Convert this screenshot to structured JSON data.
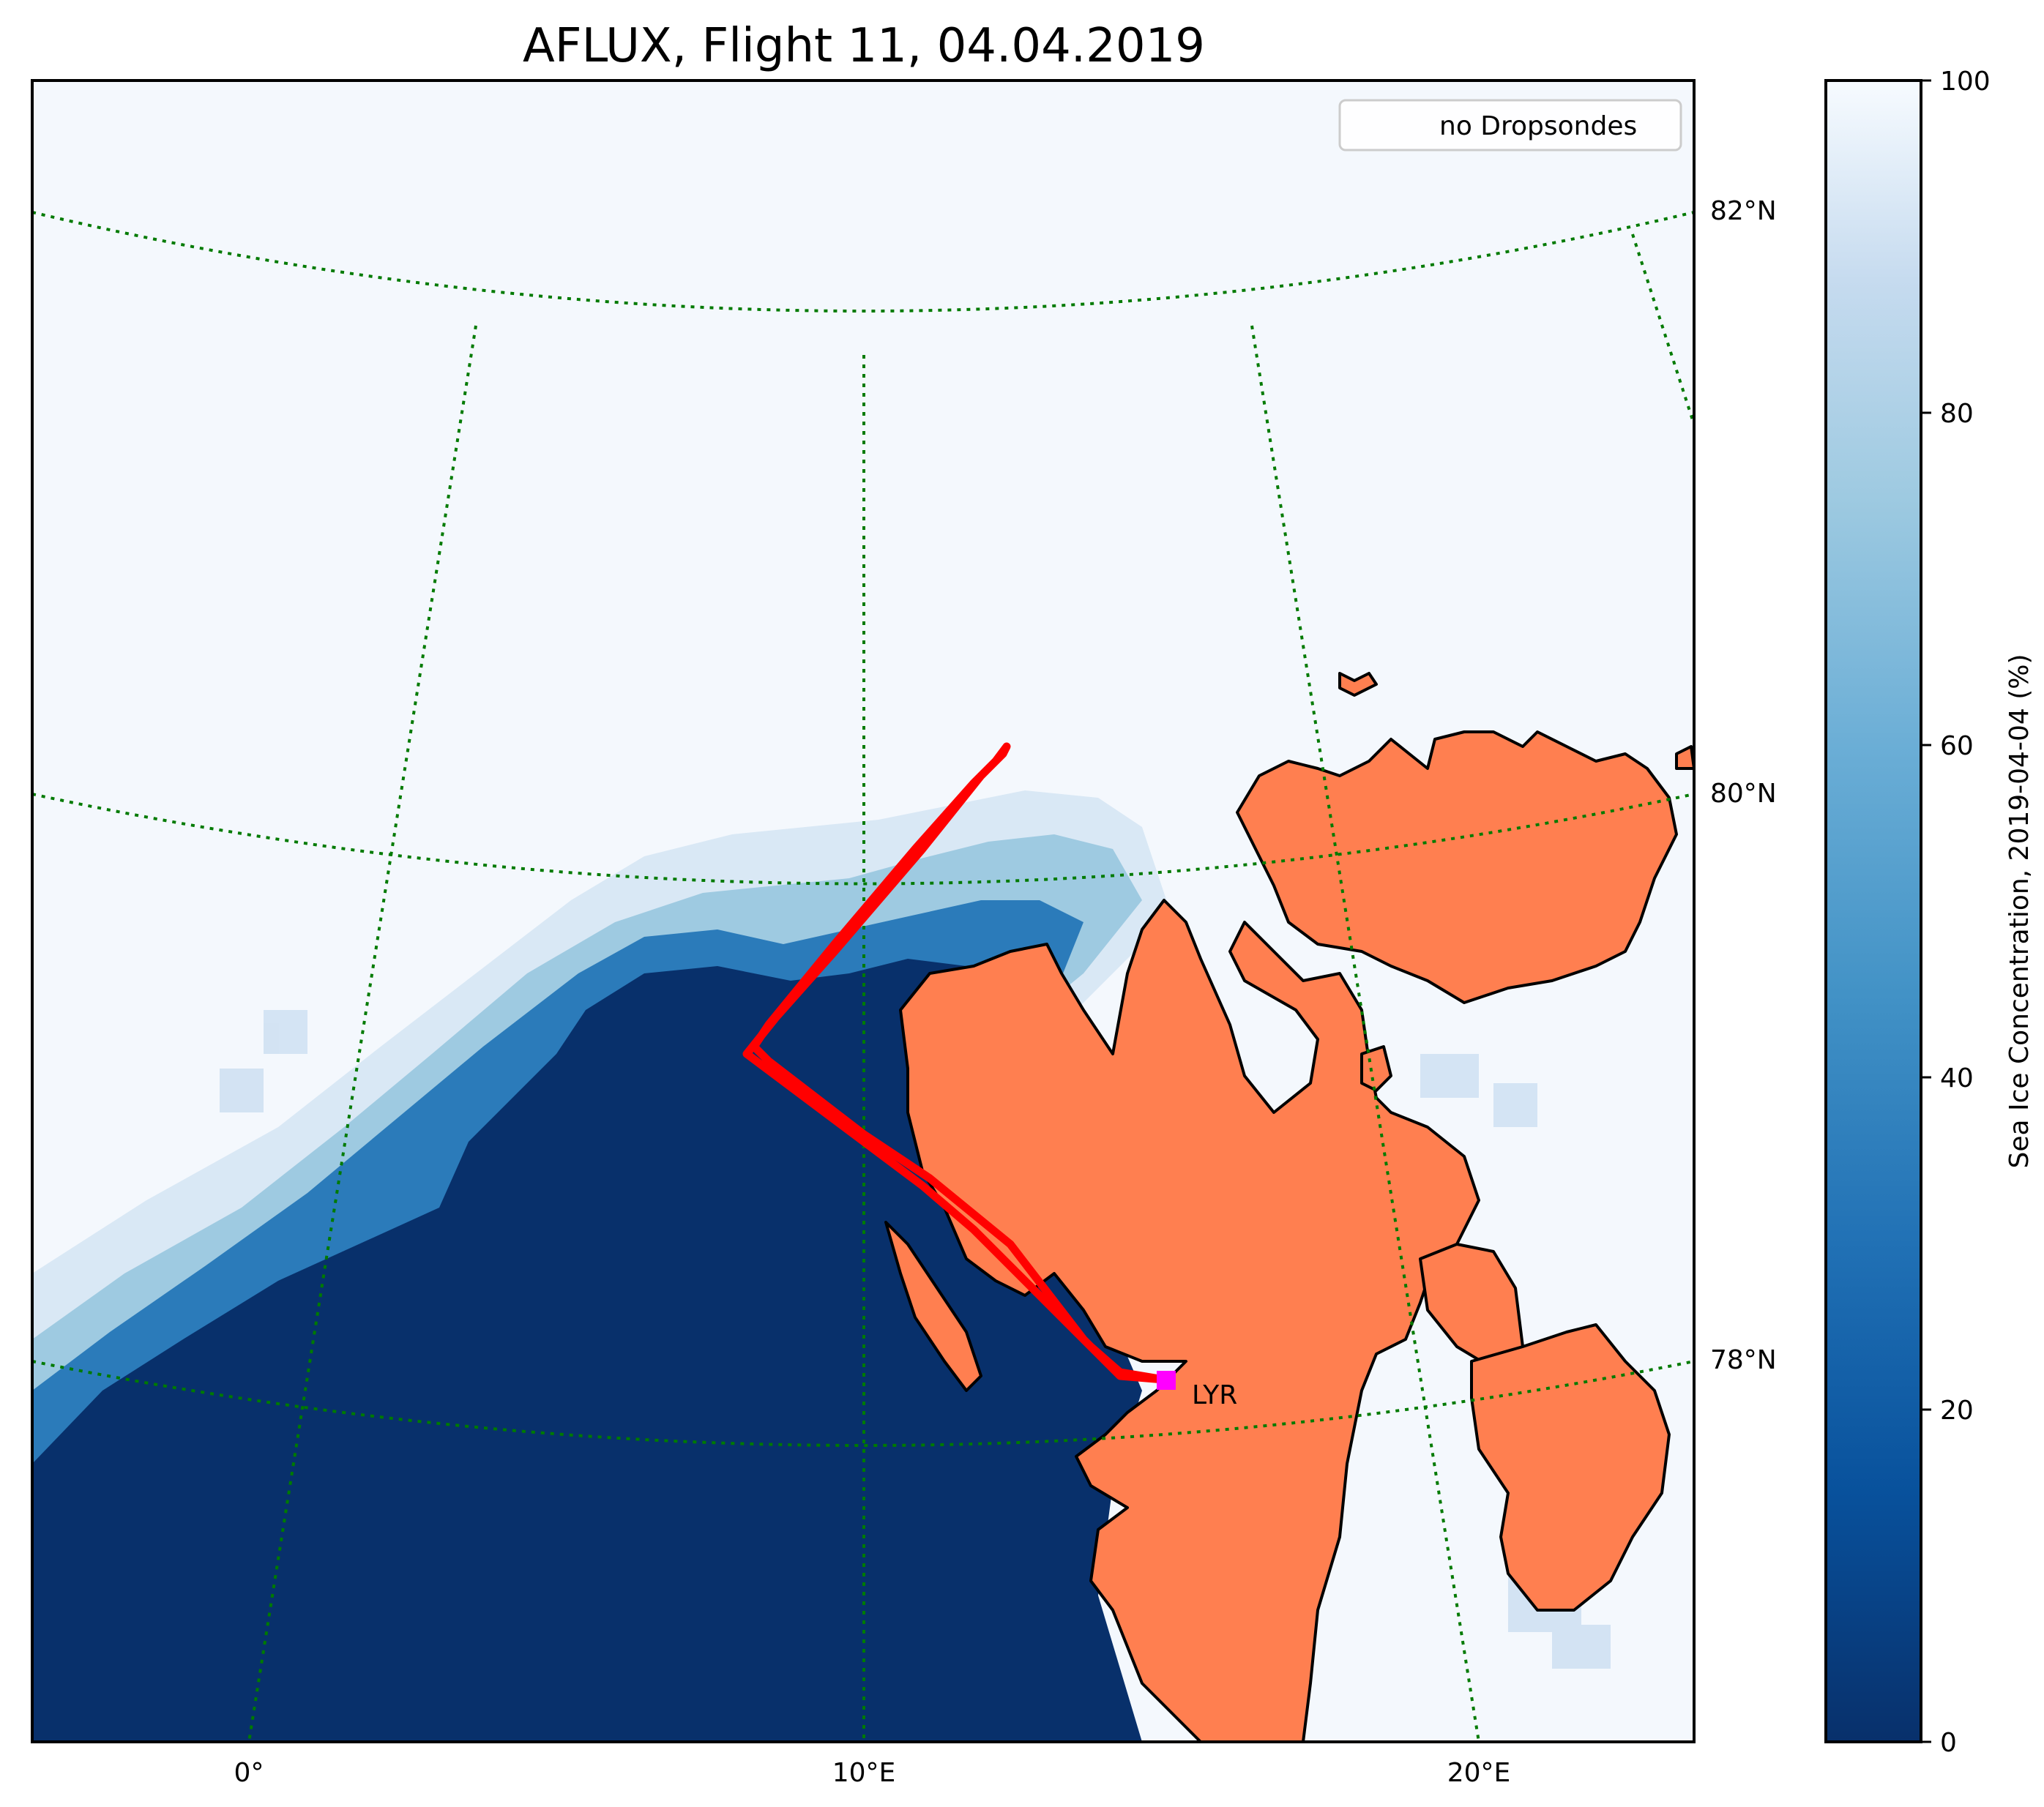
{
  "title": "AFLUX, Flight 11, 04.04.2019",
  "legend": {
    "label": "no Dropsondes"
  },
  "colorbar": {
    "label": "Sea Ice Concentration, 2019-04-04 (%)",
    "ticks": [
      "0",
      "20",
      "40",
      "60",
      "80",
      "100"
    ],
    "range": [
      0,
      100
    ],
    "colormap": "Blues_r"
  },
  "axes": {
    "lon_labels": [
      "0°",
      "10°E",
      "20°E"
    ],
    "lat_labels": [
      "78°N",
      "80°N",
      "82°N"
    ],
    "graticule_color": "#007a00"
  },
  "map": {
    "station_label": "LYR",
    "station_color": "#ff00ff",
    "track_color": "#ff0000",
    "land_color": "#ff7f50",
    "open_water_color": "#08306b"
  }
}
